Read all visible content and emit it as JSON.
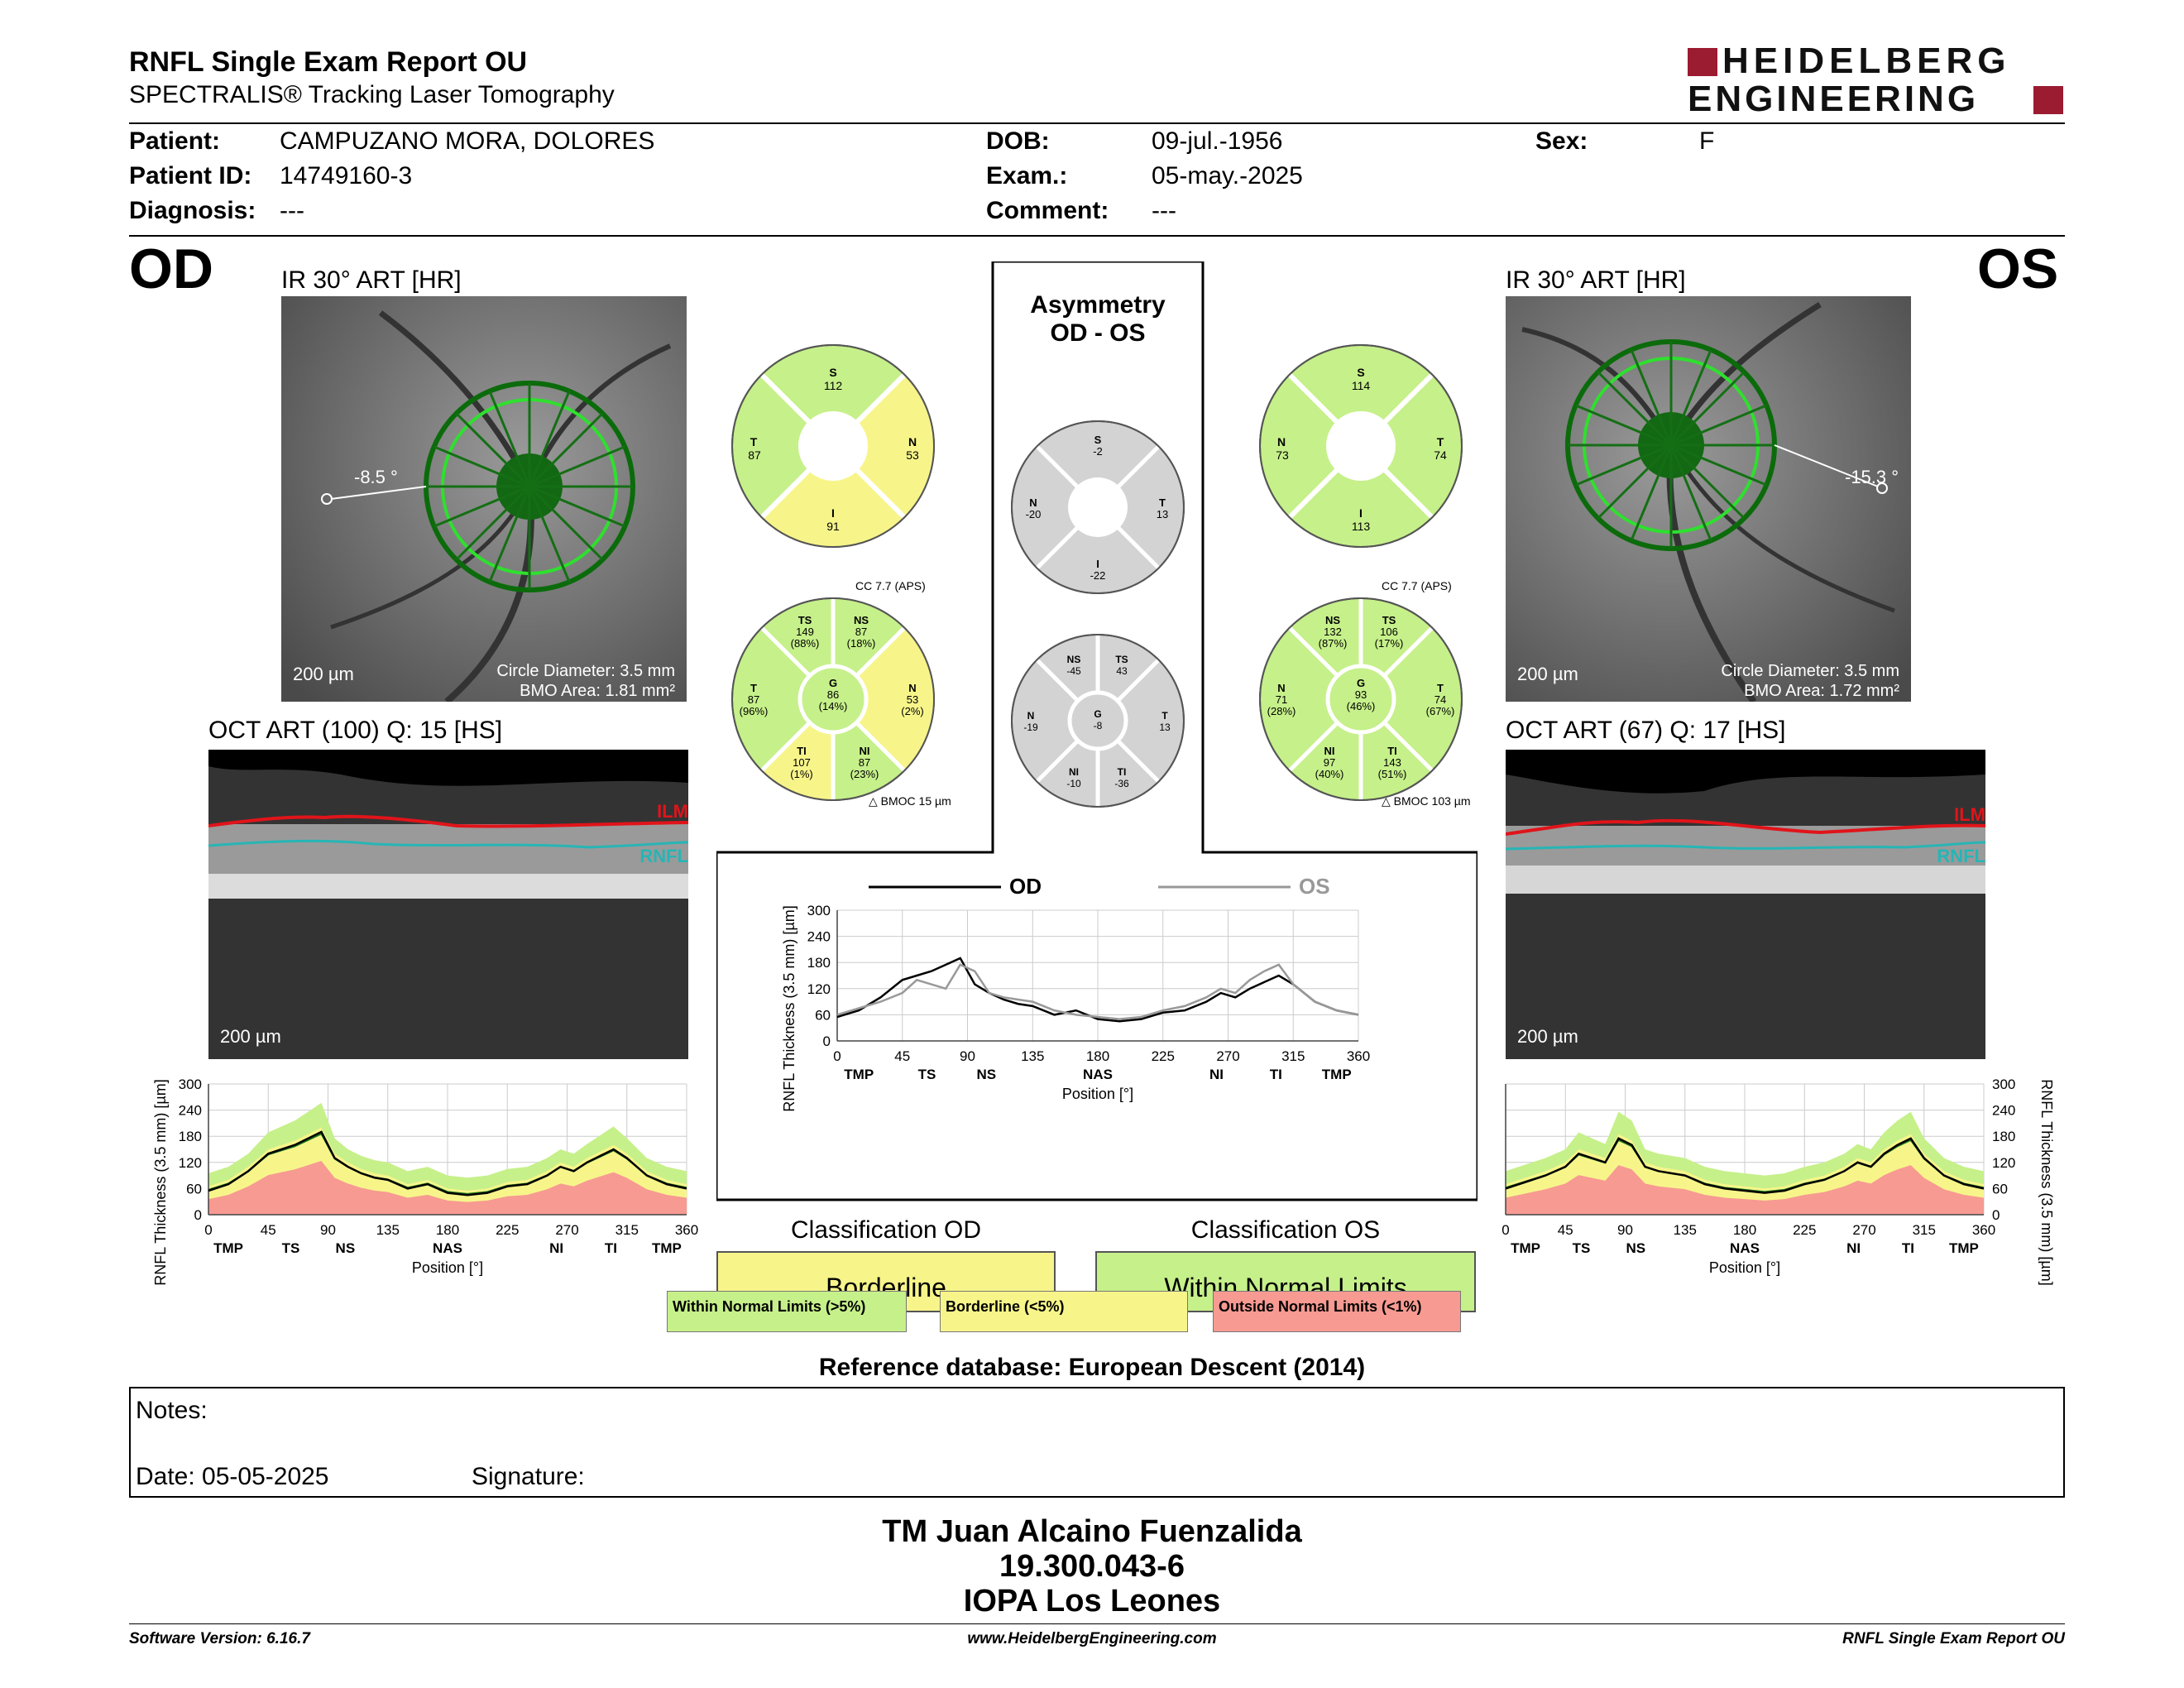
{
  "header": {
    "title": "RNFL Single Exam Report OU",
    "subtitle": "SPECTRALIS® Tracking Laser Tomography",
    "logo_line1": "HEIDELBERG",
    "logo_line2": "ENGINEERING"
  },
  "patient": {
    "patient_label": "Patient:",
    "patient_value": "CAMPUZANO MORA, DOLORES",
    "id_label": "Patient ID:",
    "id_value": "14749160-3",
    "diagnosis_label": "Diagnosis:",
    "diagnosis_value": "---",
    "dob_label": "DOB:",
    "dob_value": "09-jul.-1956",
    "exam_label": "Exam.:",
    "exam_value": "05-may.-2025",
    "comment_label": "Comment:",
    "comment_value": "---",
    "sex_label": "Sex:",
    "sex_value": "F"
  },
  "od": {
    "eye": "OD",
    "ir_title": "IR 30° ART [HR]",
    "angle": "-8.5 °",
    "scale": "200 µm",
    "circle_diameter": "Circle Diameter: 3.5 mm",
    "bmo_area": "BMO Area: 1.81 mm²",
    "oct_title": "OCT ART (100) Q: 15 [HS]",
    "oct_scale": "200 µm",
    "ilm": "ILM",
    "rnfl": "RNFL",
    "cc": "CC 7.7 (APS)",
    "bmoc": "BMOC 15 µm",
    "quad": {
      "S": "112",
      "T": "87",
      "N": "53",
      "I": "91"
    },
    "sect": {
      "TS": {
        "v": "149",
        "p": "(88%)"
      },
      "NS": {
        "v": "87",
        "p": "(18%)"
      },
      "T": {
        "v": "87",
        "p": "(96%)"
      },
      "G": {
        "v": "86",
        "p": "(14%)"
      },
      "N": {
        "v": "53",
        "p": "(2%)"
      },
      "TI": {
        "v": "107",
        "p": "(1%)"
      },
      "NI": {
        "v": "87",
        "p": "(23%)"
      }
    },
    "classification_title": "Classification OD",
    "classification": "Borderline"
  },
  "os": {
    "eye": "OS",
    "ir_title": "IR 30° ART [HR]",
    "angle": "-15.3 °",
    "scale": "200 µm",
    "circle_diameter": "Circle Diameter: 3.5 mm",
    "bmo_area": "BMO Area: 1.72 mm²",
    "oct_title": "OCT ART (67) Q: 17 [HS]",
    "oct_scale": "200 µm",
    "ilm": "ILM",
    "rnfl": "RNFL",
    "cc": "CC 7.7 (APS)",
    "bmoc": "BMOC 103 µm",
    "quad": {
      "S": "114",
      "N": "73",
      "T": "74",
      "I": "113"
    },
    "sect": {
      "NS": {
        "v": "132",
        "p": "(87%)"
      },
      "TS": {
        "v": "106",
        "p": "(17%)"
      },
      "N": {
        "v": "71",
        "p": "(28%)"
      },
      "G": {
        "v": "93",
        "p": "(46%)"
      },
      "T": {
        "v": "74",
        "p": "(67%)"
      },
      "NI": {
        "v": "97",
        "p": "(40%)"
      },
      "TI": {
        "v": "143",
        "p": "(51%)"
      }
    },
    "classification_title": "Classification OS",
    "classification": "Within Normal Limits"
  },
  "asym": {
    "title1": "Asymmetry",
    "title2": "OD - OS",
    "quad": {
      "S": "-2",
      "N": "-20",
      "T": "13",
      "I": "-22"
    },
    "sect": {
      "NS": "-45",
      "TS": "43",
      "N": "-19",
      "G": "-8",
      "T": "13",
      "NI": "-10",
      "TI": "-36"
    }
  },
  "legend": {
    "wnl": "Within Normal Limits (>5%)",
    "bl": "Borderline (<5%)",
    "onl": "Outside Normal Limits (<1%)"
  },
  "reference": "Reference database: European Descent (2014)",
  "notes": {
    "label": "Notes:",
    "date": "Date: 05-05-2025",
    "signature": "Signature:"
  },
  "signer": {
    "name": "TM Juan Alcaino Fuenzalida",
    "id": "19.300.043-6",
    "place": "IOPA Los Leones"
  },
  "footer": {
    "left": "Software Version: 6.16.7",
    "center": "www.HeidelbergEngineering.com",
    "right": "RNFL Single Exam Report OU"
  },
  "colors": {
    "green": "#c6f08a",
    "yellow": "#f7f58a",
    "red": "#f79a92",
    "gray": "#d3d3d3",
    "od_line": "#000000",
    "os_line": "#999999",
    "avg": "#1f7a1f"
  },
  "chart_data": [
    {
      "type": "line",
      "name": "od_profile",
      "xlabel": "Position [°]",
      "ylabel": "RNFL Thickness (3.5 mm) [µm]",
      "xlim": [
        0,
        360
      ],
      "ylim": [
        0,
        300
      ],
      "xticks": [
        0,
        45,
        90,
        135,
        180,
        225,
        270,
        315,
        360
      ],
      "yticks": [
        0,
        60,
        120,
        180,
        240,
        300
      ],
      "sector_labels": [
        {
          "x": 15,
          "t": "TMP"
        },
        {
          "x": 62,
          "t": "TS"
        },
        {
          "x": 103,
          "t": "NS"
        },
        {
          "x": 180,
          "t": "NAS"
        },
        {
          "x": 262,
          "t": "NI"
        },
        {
          "x": 303,
          "t": "TI"
        },
        {
          "x": 345,
          "t": "TMP"
        }
      ],
      "x": [
        0,
        15,
        30,
        45,
        55,
        65,
        75,
        85,
        95,
        105,
        115,
        125,
        135,
        150,
        165,
        180,
        195,
        210,
        225,
        240,
        255,
        265,
        275,
        285,
        295,
        305,
        315,
        330,
        345,
        360
      ],
      "series": [
        {
          "values": [
            55,
            70,
            100,
            140,
            150,
            160,
            175,
            190,
            130,
            110,
            95,
            85,
            80,
            60,
            70,
            50,
            45,
            50,
            65,
            70,
            90,
            110,
            100,
            120,
            135,
            150,
            130,
            90,
            70,
            60
          ]
        }
      ]
    },
    {
      "type": "line",
      "name": "os_profile",
      "xlabel": "Position [°]",
      "ylabel": "RNFL Thickness (3.5 mm) [µm]",
      "xlim": [
        0,
        360
      ],
      "ylim": [
        0,
        300
      ],
      "xticks": [
        0,
        45,
        90,
        135,
        180,
        225,
        270,
        315,
        360
      ],
      "yticks": [
        0,
        60,
        120,
        180,
        240,
        300
      ],
      "sector_labels": [
        {
          "x": 15,
          "t": "TMP"
        },
        {
          "x": 57,
          "t": "TS"
        },
        {
          "x": 98,
          "t": "NS"
        },
        {
          "x": 180,
          "t": "NAS"
        },
        {
          "x": 262,
          "t": "NI"
        },
        {
          "x": 303,
          "t": "TI"
        },
        {
          "x": 345,
          "t": "TMP"
        }
      ],
      "x": [
        0,
        15,
        30,
        45,
        55,
        65,
        75,
        85,
        95,
        105,
        115,
        125,
        135,
        150,
        165,
        180,
        195,
        210,
        225,
        240,
        255,
        265,
        275,
        285,
        295,
        305,
        315,
        330,
        345,
        360
      ],
      "series": [
        {
          "values": [
            60,
            75,
            90,
            110,
            140,
            130,
            120,
            175,
            160,
            110,
            100,
            95,
            90,
            70,
            60,
            55,
            50,
            55,
            70,
            80,
            100,
            120,
            110,
            140,
            160,
            175,
            130,
            90,
            70,
            60
          ]
        }
      ]
    },
    {
      "type": "line",
      "name": "comparison",
      "xlabel": "Position [°]",
      "ylabel": "RNFL Thickness (3.5 mm) [µm]",
      "xlim": [
        0,
        360
      ],
      "ylim": [
        0,
        300
      ],
      "xticks": [
        0,
        45,
        90,
        135,
        180,
        225,
        270,
        315,
        360
      ],
      "yticks": [
        0,
        60,
        120,
        180,
        240,
        300
      ],
      "sector_labels": [
        {
          "x": 15,
          "t": "TMP"
        },
        {
          "x": 62,
          "t": "TS"
        },
        {
          "x": 103,
          "t": "NS"
        },
        {
          "x": 180,
          "t": "NAS"
        },
        {
          "x": 262,
          "t": "NI"
        },
        {
          "x": 303,
          "t": "TI"
        },
        {
          "x": 345,
          "t": "TMP"
        }
      ],
      "x": [
        0,
        15,
        30,
        45,
        55,
        65,
        75,
        85,
        95,
        105,
        115,
        125,
        135,
        150,
        165,
        180,
        195,
        210,
        225,
        240,
        255,
        265,
        275,
        285,
        295,
        305,
        315,
        330,
        345,
        360
      ],
      "series": [
        {
          "name": "OD",
          "values": [
            55,
            70,
            100,
            140,
            150,
            160,
            175,
            190,
            130,
            110,
            95,
            85,
            80,
            60,
            70,
            50,
            45,
            50,
            65,
            70,
            90,
            110,
            100,
            120,
            135,
            150,
            130,
            90,
            70,
            60
          ]
        },
        {
          "name": "OS",
          "values": [
            60,
            75,
            90,
            110,
            140,
            130,
            120,
            175,
            160,
            110,
            100,
            95,
            90,
            70,
            60,
            55,
            50,
            55,
            70,
            80,
            100,
            120,
            110,
            140,
            160,
            175,
            130,
            90,
            70,
            60
          ]
        }
      ]
    }
  ]
}
